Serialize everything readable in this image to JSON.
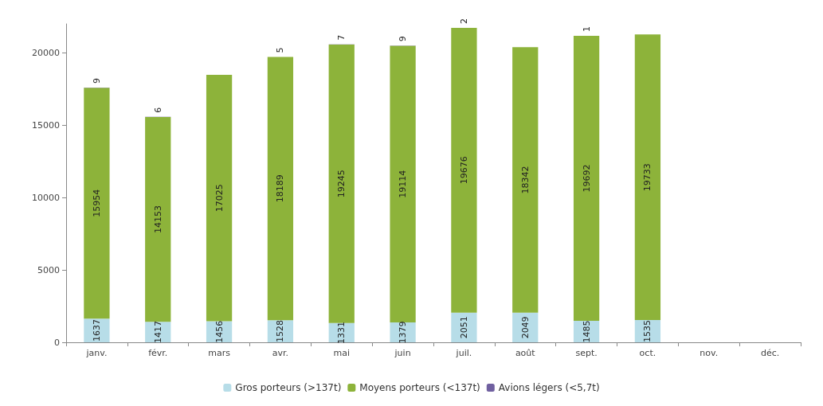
{
  "chart_data": {
    "type": "bar",
    "stacked": true,
    "categories": [
      "janv.",
      "févr.",
      "mars",
      "avr.",
      "mai",
      "juin",
      "juil.",
      "août",
      "sept.",
      "oct.",
      "nov.",
      "déc."
    ],
    "series": [
      {
        "name": "Gros porteurs (>137t)",
        "color": "#b7dde8",
        "values": [
          1637,
          1417,
          1456,
          1528,
          1331,
          1379,
          2051,
          2049,
          1485,
          1535,
          null,
          null
        ]
      },
      {
        "name": "Moyens porteurs (<137t)",
        "color": "#8db33a",
        "values": [
          15954,
          14153,
          17025,
          18189,
          19245,
          19114,
          19676,
          18342,
          19692,
          19733,
          null,
          null
        ]
      },
      {
        "name": "Avions légers (<5,7t)",
        "color": "#7060a0",
        "values": [
          9,
          6,
          null,
          5,
          7,
          9,
          2,
          null,
          1,
          null,
          null,
          null
        ],
        "value_labels": [
          "9",
          "6",
          null,
          "5",
          "7",
          "9",
          "2",
          null,
          "1",
          null,
          null,
          null
        ]
      }
    ],
    "ylim": [
      0,
      22000
    ],
    "yticks": [
      0,
      5000,
      10000,
      15000,
      20000
    ],
    "grid": false,
    "legend": "bottom",
    "data_labels": true
  }
}
